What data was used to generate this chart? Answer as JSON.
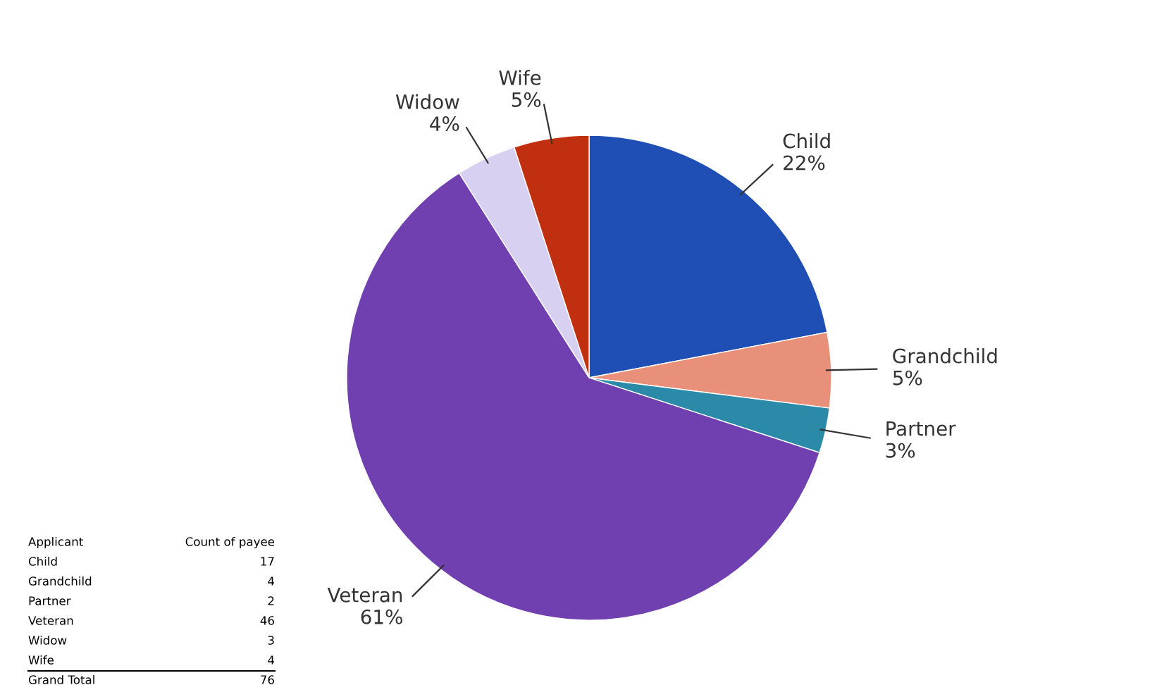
{
  "chart_data": {
    "type": "pie",
    "categories": [
      "Child",
      "Grandchild",
      "Partner",
      "Veteran",
      "Widow",
      "Wife"
    ],
    "values": [
      22,
      5,
      3,
      61,
      4,
      5
    ],
    "value_labels": [
      "22%",
      "5%",
      "3%",
      "61%",
      "4%",
      "5%"
    ],
    "colors": [
      "#1f4fb5",
      "#e8907a",
      "#2a8aa8",
      "#7040b0",
      "#d8d0f0",
      "#c03010"
    ],
    "annotations": [
      "Applicant",
      "Count of payee",
      "17",
      "4",
      "2",
      "46",
      "3",
      "4",
      "Grand Total",
      "76"
    ]
  }
}
